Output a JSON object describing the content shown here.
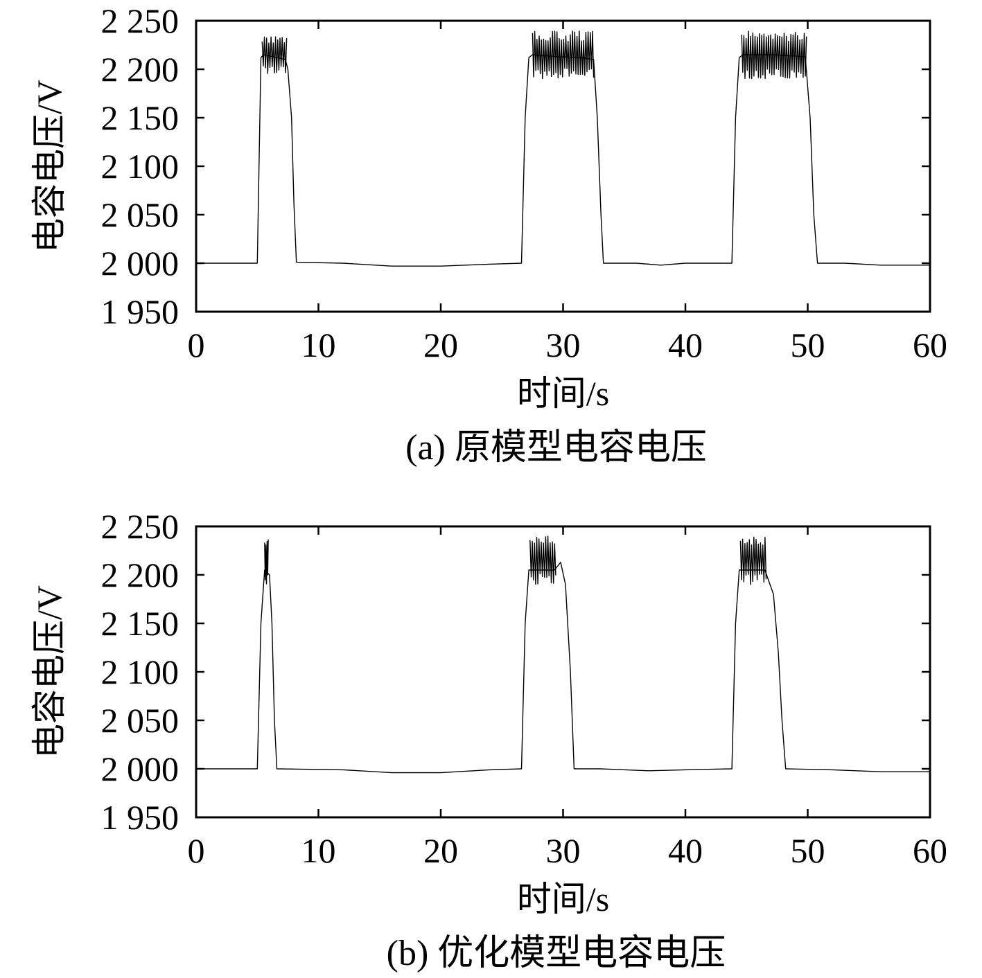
{
  "chart_data": [
    {
      "type": "line",
      "caption": "(a) 原模型电容电压",
      "xlabel": "时间/s",
      "ylabel": "电容电压/V",
      "xlim": [
        0,
        60
      ],
      "ylim": [
        1950,
        2250
      ],
      "xticks": [
        0,
        10,
        20,
        30,
        40,
        50,
        60
      ],
      "xtick_labels": [
        "0",
        "10",
        "20",
        "30",
        "40",
        "50",
        "60"
      ],
      "yticks": [
        1950,
        2000,
        2050,
        2100,
        2150,
        2200,
        2250
      ],
      "ytick_labels": [
        "1 950",
        "2 000",
        "2 050",
        "2 100",
        "2 150",
        "2 200",
        "2 250"
      ],
      "grid": false,
      "series": [
        {
          "x": [
            0,
            5.0,
            5.3,
            5.5,
            7.3,
            7.5,
            7.8,
            8.0,
            8.2,
            12,
            16,
            20,
            24,
            26.6,
            26.9,
            27.2,
            27.5,
            29.5,
            31.5,
            32.5,
            32.8,
            33.1,
            33.3,
            36,
            38,
            40,
            43.8,
            44.1,
            44.4,
            44.7,
            47.0,
            49.8,
            50.2,
            50.5,
            50.8,
            53,
            56,
            60
          ],
          "y": [
            2000,
            2000,
            2212,
            2215,
            2210,
            2200,
            2150,
            2060,
            2001,
            2000,
            1997,
            1997,
            1999,
            2000,
            2150,
            2212,
            2215,
            2213,
            2212,
            2210,
            2150,
            2050,
            2000,
            2000,
            1998,
            2000,
            2000,
            2150,
            2212,
            2215,
            2215,
            2213,
            2150,
            2050,
            2000,
            2000,
            1998,
            1998
          ]
        }
      ],
      "oscillation_bands": [
        {
          "x_start": 5.4,
          "x_end": 7.4,
          "y_low": 2195,
          "y_high": 2235
        },
        {
          "x_start": 27.5,
          "x_end": 32.5,
          "y_low": 2190,
          "y_high": 2240
        },
        {
          "x_start": 44.6,
          "x_end": 49.9,
          "y_low": 2190,
          "y_high": 2240
        }
      ]
    },
    {
      "type": "line",
      "caption": "(b) 优化模型电容电压",
      "xlabel": "时间/s",
      "ylabel": "电容电压/V",
      "xlim": [
        0,
        60
      ],
      "ylim": [
        1950,
        2250
      ],
      "xticks": [
        0,
        10,
        20,
        30,
        40,
        50,
        60
      ],
      "xtick_labels": [
        "0",
        "10",
        "20",
        "30",
        "40",
        "50",
        "60"
      ],
      "yticks": [
        1950,
        2000,
        2050,
        2100,
        2150,
        2200,
        2250
      ],
      "ytick_labels": [
        "1 950",
        "2 000",
        "2 050",
        "2 100",
        "2 150",
        "2 200",
        "2 250"
      ],
      "grid": false,
      "series": [
        {
          "x": [
            0,
            5.0,
            5.3,
            5.6,
            6.0,
            6.2,
            6.4,
            6.6,
            12,
            16,
            20,
            24,
            26.6,
            26.9,
            27.2,
            29.3,
            29.8,
            30.2,
            30.6,
            30.9,
            33,
            37,
            40,
            43.8,
            44.1,
            44.4,
            46.5,
            47.2,
            47.6,
            47.9,
            48.2,
            52,
            56,
            60
          ],
          "y": [
            2000,
            2000,
            2150,
            2205,
            2200,
            2150,
            2050,
            2000,
            1999,
            1996,
            1996,
            1999,
            2000,
            2150,
            2205,
            2205,
            2213,
            2190,
            2100,
            2000,
            2000,
            1998,
            1999,
            2000,
            2150,
            2205,
            2205,
            2180,
            2120,
            2050,
            2000,
            1999,
            1997,
            1997
          ]
        }
      ],
      "oscillation_bands": [
        {
          "x_start": 5.6,
          "x_end": 5.9,
          "y_low": 2190,
          "y_high": 2240
        },
        {
          "x_start": 27.3,
          "x_end": 29.4,
          "y_low": 2190,
          "y_high": 2240
        },
        {
          "x_start": 44.5,
          "x_end": 46.6,
          "y_low": 2190,
          "y_high": 2240
        }
      ]
    }
  ]
}
